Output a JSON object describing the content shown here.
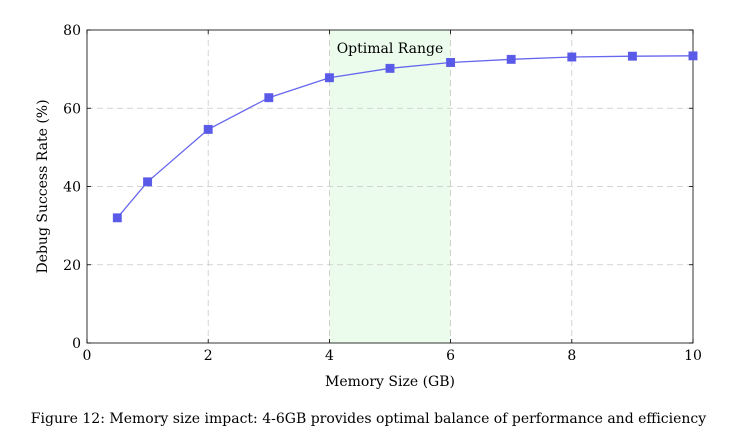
{
  "chart_data": {
    "type": "line",
    "x": [
      0.5,
      1,
      2,
      3,
      4,
      5,
      6,
      7,
      8,
      9,
      10
    ],
    "series": [
      {
        "name": "Debug Success Rate",
        "values": [
          32.0,
          41.2,
          54.6,
          62.7,
          67.8,
          70.2,
          71.7,
          72.5,
          73.1,
          73.3,
          73.4
        ]
      }
    ],
    "xlabel": "Memory Size (GB)",
    "ylabel": "Debug Success Rate (%)",
    "xlim": [
      0,
      10
    ],
    "ylim": [
      0,
      80
    ],
    "xticks": [
      0,
      2,
      4,
      6,
      8,
      10
    ],
    "yticks": [
      0,
      20,
      40,
      60,
      80
    ],
    "grid": true,
    "highlight": {
      "x_from": 4,
      "x_to": 6,
      "label": "Optimal Range"
    },
    "colors": {
      "line": "#6666ee",
      "marker": "#5a5ae8",
      "highlight": "#ecfcec",
      "grid": "#c8c8c8"
    }
  },
  "caption": "Figure 12: Memory size impact: 4-6GB provides optimal balance of performance and efficiency"
}
